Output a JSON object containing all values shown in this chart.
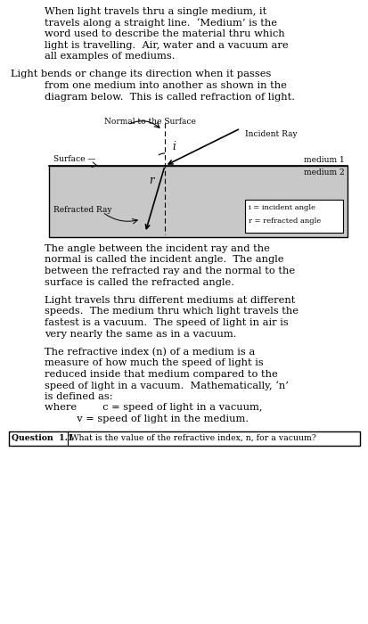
{
  "bg_color": "#ffffff",
  "diagram_gray": "#c8c8c8",
  "para1_lines": [
    "When light travels thru a single medium, it",
    "travels along a straight line.  ‘Medium’ is the",
    "word used to describe the material thru which",
    "light is travelling.  Air, water and a vacuum are",
    "all examples of mediums."
  ],
  "para2_lines": [
    "Light bends or change its direction when it passes",
    "from one medium into another as shown in the",
    "diagram below.  This is called refraction of light."
  ],
  "para3_lines": [
    "The angle between the incident ray and the",
    "normal is called the incident angle.  The angle",
    "between the refracted ray and the normal to the",
    "surface is called the refracted angle."
  ],
  "para4_lines": [
    "Light travels thru different mediums at different",
    "speeds.  The medium thru which light travels the",
    "fastest is a vacuum.  The speed of light in air is",
    "very nearly the same as in a vacuum."
  ],
  "para5_lines": [
    "The refractive index (n) of a medium is a",
    "measure of how much the speed of light is",
    "reduced inside that medium compared to the",
    "speed of light in a vacuum.  Mathematically, ‘n’",
    "is defined as:"
  ],
  "para6_where": "where        c = speed of light in a vacuum,",
  "para6_v": "          v = speed of light in the medium.",
  "normal_label": "Normal to the Surface",
  "surface_label": "Surface —",
  "medium1_label": "medium 1",
  "medium2_label": "medium 2",
  "incident_label": "Incident Ray",
  "refracted_label": "Refracted Ray",
  "i_label": "i",
  "r_label": "r",
  "legend_i": "i = incident angle",
  "legend_r": "r = refracted angle",
  "question_label": "Question  1.1",
  "question_text": "What is the value of the refractive index, n, for a vacuum?"
}
